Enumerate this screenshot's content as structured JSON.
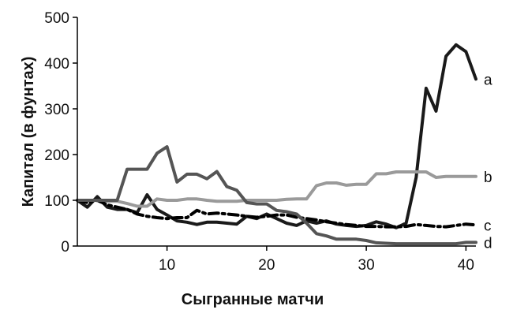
{
  "chart_data": {
    "type": "line",
    "title": "",
    "xlabel": "Сыгранные матчи",
    "ylabel": "Капитал (в фунтах)",
    "xlim": [
      1,
      41
    ],
    "ylim": [
      0,
      500
    ],
    "xticks": [
      10,
      20,
      30,
      40
    ],
    "yticks": [
      0,
      100,
      200,
      300,
      400,
      500
    ],
    "legend": "line-end-labels",
    "grid": false,
    "series": [
      {
        "name": "a",
        "color": "#1a1a1a",
        "style": "solid",
        "x": [
          1,
          2,
          3,
          4,
          5,
          6,
          7,
          8,
          9,
          10,
          11,
          12,
          13,
          14,
          15,
          16,
          17,
          18,
          19,
          20,
          21,
          22,
          23,
          24,
          25,
          26,
          27,
          28,
          29,
          30,
          31,
          32,
          33,
          34,
          35,
          36,
          37,
          38,
          39,
          40,
          41
        ],
        "values": [
          100,
          85,
          108,
          85,
          80,
          80,
          73,
          112,
          80,
          68,
          55,
          52,
          47,
          52,
          52,
          50,
          48,
          65,
          60,
          70,
          60,
          50,
          45,
          55,
          50,
          55,
          48,
          45,
          43,
          45,
          53,
          48,
          40,
          50,
          150,
          345,
          295,
          415,
          440,
          425,
          365
        ]
      },
      {
        "name": "b",
        "color": "#9a9a9a",
        "style": "solid",
        "x": [
          1,
          2,
          3,
          4,
          5,
          6,
          7,
          8,
          9,
          10,
          11,
          12,
          13,
          14,
          15,
          16,
          17,
          18,
          19,
          20,
          21,
          22,
          23,
          24,
          25,
          26,
          27,
          28,
          29,
          30,
          31,
          32,
          33,
          34,
          35,
          36,
          37,
          38,
          39,
          40,
          41
        ],
        "values": [
          100,
          100,
          100,
          98,
          98,
          93,
          87,
          87,
          103,
          100,
          100,
          103,
          103,
          100,
          98,
          98,
          98,
          100,
          100,
          100,
          100,
          102,
          103,
          103,
          132,
          138,
          138,
          133,
          135,
          135,
          158,
          158,
          162,
          162,
          162,
          162,
          150,
          152,
          152,
          152,
          152
        ]
      },
      {
        "name": "c",
        "color": "#000000",
        "style": "dashdot",
        "x": [
          1,
          2,
          3,
          4,
          5,
          6,
          7,
          8,
          9,
          10,
          11,
          12,
          13,
          14,
          15,
          16,
          17,
          18,
          19,
          20,
          21,
          22,
          23,
          24,
          25,
          26,
          27,
          28,
          29,
          30,
          31,
          32,
          33,
          34,
          35,
          36,
          37,
          38,
          39,
          40,
          41
        ],
        "values": [
          100,
          95,
          100,
          90,
          85,
          80,
          70,
          65,
          62,
          60,
          62,
          62,
          78,
          70,
          72,
          70,
          68,
          65,
          63,
          65,
          68,
          68,
          63,
          60,
          57,
          53,
          50,
          47,
          45,
          43,
          43,
          42,
          42,
          43,
          47,
          45,
          43,
          42,
          45,
          48,
          46
        ]
      },
      {
        "name": "d",
        "color": "#555555",
        "style": "solid",
        "x": [
          1,
          2,
          3,
          4,
          5,
          6,
          7,
          8,
          9,
          10,
          11,
          12,
          13,
          14,
          15,
          16,
          17,
          18,
          19,
          20,
          21,
          22,
          23,
          24,
          25,
          26,
          27,
          28,
          29,
          30,
          31,
          32,
          33,
          34,
          35,
          36,
          37,
          38,
          39,
          40,
          41
        ],
        "values": [
          100,
          100,
          100,
          100,
          100,
          168,
          168,
          168,
          203,
          217,
          140,
          157,
          157,
          147,
          163,
          130,
          122,
          95,
          92,
          92,
          78,
          75,
          70,
          50,
          27,
          22,
          15,
          15,
          15,
          12,
          7,
          6,
          5,
          5,
          5,
          5,
          5,
          5,
          5,
          8,
          8
        ]
      }
    ]
  }
}
